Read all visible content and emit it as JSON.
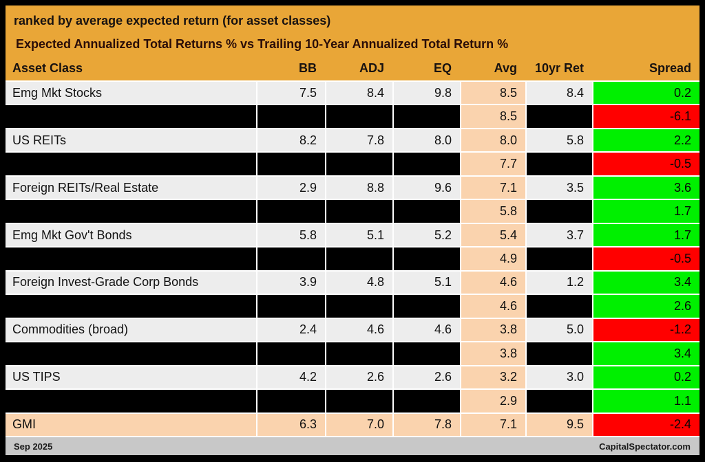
{
  "title": "ranked by average expected return (for asset classes)",
  "subtitle": "Expected Annualized Total Returns % vs Trailing 10-Year Annualized Total Return %",
  "columns": [
    "Asset Class",
    "BB",
    "ADJ",
    "EQ",
    "Avg",
    "10yr Ret",
    "Spread"
  ],
  "rows": [
    {
      "type": "data",
      "cells": [
        "Emg Mkt Stocks",
        "7.5",
        "8.4",
        "9.8",
        "8.5",
        "8.4",
        "0.2"
      ]
    },
    {
      "type": "masked",
      "cells": [
        "",
        "",
        "",
        "",
        "8.5",
        "",
        "-6.1"
      ]
    },
    {
      "type": "data",
      "cells": [
        "US REITs",
        "8.2",
        "7.8",
        "8.0",
        "8.0",
        "5.8",
        "2.2"
      ]
    },
    {
      "type": "masked",
      "cells": [
        "",
        "",
        "",
        "",
        "7.7",
        "",
        "-0.5"
      ]
    },
    {
      "type": "data",
      "cells": [
        "Foreign REITs/Real Estate",
        "2.9",
        "8.8",
        "9.6",
        "7.1",
        "3.5",
        "3.6"
      ]
    },
    {
      "type": "masked",
      "cells": [
        "",
        "",
        "",
        "",
        "5.8",
        "",
        "1.7"
      ]
    },
    {
      "type": "data",
      "cells": [
        "Emg Mkt Gov't Bonds",
        "5.8",
        "5.1",
        "5.2",
        "5.4",
        "3.7",
        "1.7"
      ]
    },
    {
      "type": "masked",
      "cells": [
        "",
        "",
        "",
        "",
        "4.9",
        "",
        "-0.5"
      ]
    },
    {
      "type": "data",
      "cells": [
        "Foreign Invest-Grade Corp Bonds",
        "3.9",
        "4.8",
        "5.1",
        "4.6",
        "1.2",
        "3.4"
      ]
    },
    {
      "type": "masked",
      "cells": [
        "",
        "",
        "",
        "",
        "4.6",
        "",
        "2.6"
      ]
    },
    {
      "type": "data",
      "cells": [
        "Commodities (broad)",
        "2.4",
        "4.6",
        "4.6",
        "3.8",
        "5.0",
        "-1.2"
      ]
    },
    {
      "type": "masked",
      "cells": [
        "",
        "",
        "",
        "",
        "3.8",
        "",
        "3.4"
      ]
    },
    {
      "type": "data",
      "cells": [
        "US TIPS",
        "4.2",
        "2.6",
        "2.6",
        "3.2",
        "3.0",
        "0.2"
      ]
    },
    {
      "type": "masked",
      "cells": [
        "",
        "",
        "",
        "",
        "2.9",
        "",
        "1.1"
      ]
    },
    {
      "type": "total",
      "cells": [
        "GMI",
        "6.3",
        "7.0",
        "7.8",
        "7.1",
        "9.5",
        "-2.4"
      ]
    }
  ],
  "footer": {
    "date": "Sep 2025",
    "site": "CapitalSpectator.com"
  },
  "colors": {
    "gold_header": "#E9A637",
    "row_light": "#EDEDED",
    "row_masked": "#000000",
    "avg_column_peach": "#FAD3AE",
    "total_row_peach": "#FAD3AE",
    "spread_positive_green": "#00F000",
    "spread_negative_red": "#FF0000",
    "footer_gray": "#C8C8C8",
    "frame_black": "#000000"
  },
  "chart_data": {
    "type": "table",
    "title": "ranked by average expected return (for asset classes)",
    "subtitle": "Expected Annualized Total Returns % vs Trailing 10-Year Annualized Total Return %",
    "columns": [
      "Asset Class",
      "BB",
      "ADJ",
      "EQ",
      "Avg",
      "10yr Ret",
      "Spread"
    ],
    "rows": [
      {
        "asset": "Emg Mkt Stocks",
        "bb": 7.5,
        "adj": 8.4,
        "eq": 9.8,
        "avg": 8.5,
        "ret10yr": 8.4,
        "spread": 0.2,
        "masked": false
      },
      {
        "asset": null,
        "bb": null,
        "adj": null,
        "eq": null,
        "avg": 8.5,
        "ret10yr": null,
        "spread": -6.1,
        "masked": true
      },
      {
        "asset": "US REITs",
        "bb": 8.2,
        "adj": 7.8,
        "eq": 8.0,
        "avg": 8.0,
        "ret10yr": 5.8,
        "spread": 2.2,
        "masked": false
      },
      {
        "asset": null,
        "bb": null,
        "adj": null,
        "eq": null,
        "avg": 7.7,
        "ret10yr": null,
        "spread": -0.5,
        "masked": true
      },
      {
        "asset": "Foreign REITs/Real Estate",
        "bb": 2.9,
        "adj": 8.8,
        "eq": 9.6,
        "avg": 7.1,
        "ret10yr": 3.5,
        "spread": 3.6,
        "masked": false
      },
      {
        "asset": null,
        "bb": null,
        "adj": null,
        "eq": null,
        "avg": 5.8,
        "ret10yr": null,
        "spread": 1.7,
        "masked": true
      },
      {
        "asset": "Emg Mkt Gov't Bonds",
        "bb": 5.8,
        "adj": 5.1,
        "eq": 5.2,
        "avg": 5.4,
        "ret10yr": 3.7,
        "spread": 1.7,
        "masked": false
      },
      {
        "asset": null,
        "bb": null,
        "adj": null,
        "eq": null,
        "avg": 4.9,
        "ret10yr": null,
        "spread": -0.5,
        "masked": true
      },
      {
        "asset": "Foreign Invest-Grade Corp Bonds",
        "bb": 3.9,
        "adj": 4.8,
        "eq": 5.1,
        "avg": 4.6,
        "ret10yr": 1.2,
        "spread": 3.4,
        "masked": false
      },
      {
        "asset": null,
        "bb": null,
        "adj": null,
        "eq": null,
        "avg": 4.6,
        "ret10yr": null,
        "spread": 2.6,
        "masked": true
      },
      {
        "asset": "Commodities (broad)",
        "bb": 2.4,
        "adj": 4.6,
        "eq": 4.6,
        "avg": 3.8,
        "ret10yr": 5.0,
        "spread": -1.2,
        "masked": false
      },
      {
        "asset": null,
        "bb": null,
        "adj": null,
        "eq": null,
        "avg": 3.8,
        "ret10yr": null,
        "spread": 3.4,
        "masked": true
      },
      {
        "asset": "US TIPS",
        "bb": 4.2,
        "adj": 2.6,
        "eq": 2.6,
        "avg": 3.2,
        "ret10yr": 3.0,
        "spread": 0.2,
        "masked": false
      },
      {
        "asset": null,
        "bb": null,
        "adj": null,
        "eq": null,
        "avg": 2.9,
        "ret10yr": null,
        "spread": 1.1,
        "masked": true
      },
      {
        "asset": "GMI",
        "bb": 6.3,
        "adj": 7.0,
        "eq": 7.8,
        "avg": 7.1,
        "ret10yr": 9.5,
        "spread": -2.4,
        "masked": false
      }
    ],
    "legend": "Spread cell green when positive, red when negative; Avg column highlighted peach; GMI benchmark row highlighted peach",
    "source_label": "CapitalSpectator.com",
    "date_label": "Sep 2025"
  }
}
